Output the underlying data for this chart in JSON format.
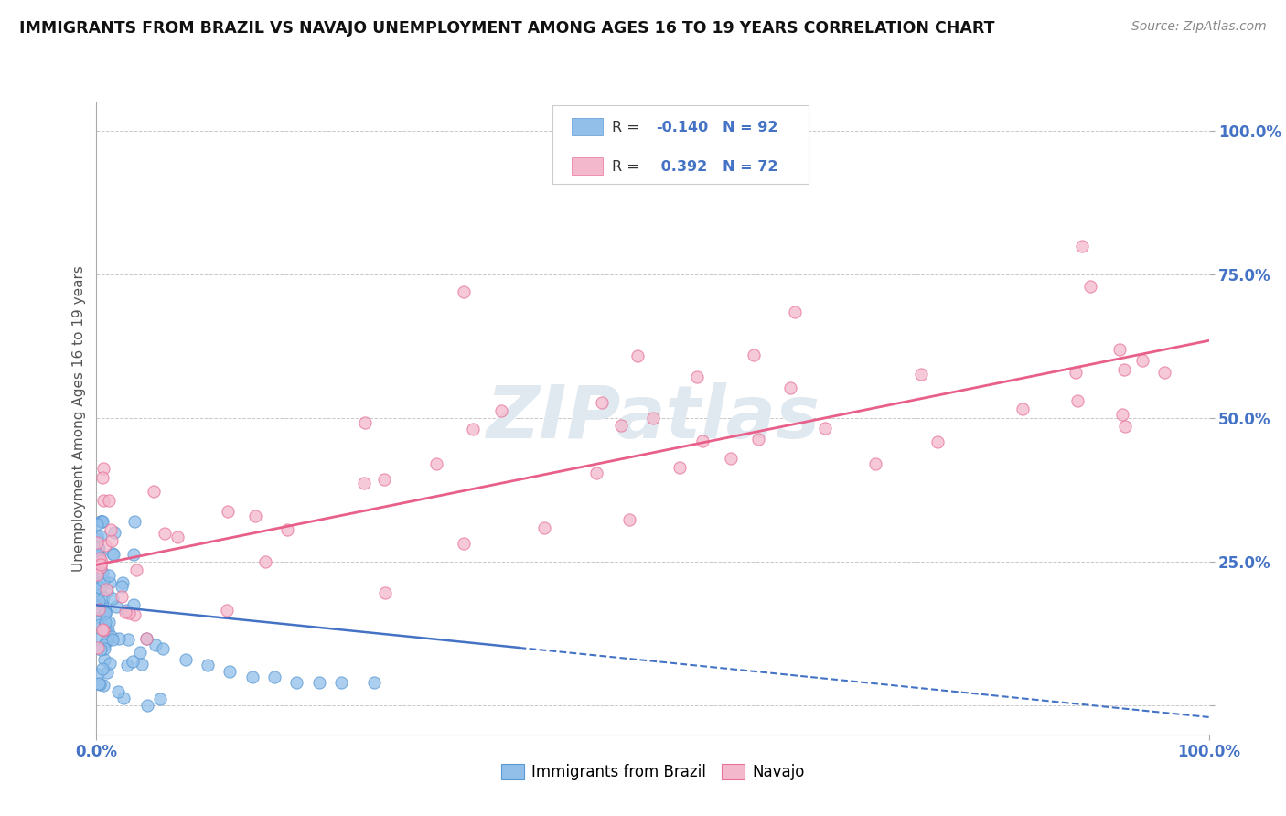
{
  "title": "IMMIGRANTS FROM BRAZIL VS NAVAJO UNEMPLOYMENT AMONG AGES 16 TO 19 YEARS CORRELATION CHART",
  "source": "Source: ZipAtlas.com",
  "ylabel": "Unemployment Among Ages 16 to 19 years",
  "blue_r": "-0.140",
  "blue_n": "92",
  "pink_r": "0.392",
  "pink_n": "72",
  "blue_color": "#92BFEA",
  "pink_color": "#F4B8CC",
  "blue_edge_color": "#5A9AD4",
  "pink_edge_color": "#E8729A",
  "blue_line_color": "#4472C4",
  "pink_line_color": "#E8608A",
  "background_color": "#FFFFFF",
  "grid_color": "#C8C8C8",
  "tick_color": "#4472C4",
  "ylabel_color": "#555555",
  "title_color": "#111111",
  "source_color": "#888888",
  "watermark_color": "#E0E8F0",
  "legend_border_color": "#CCCCCC"
}
